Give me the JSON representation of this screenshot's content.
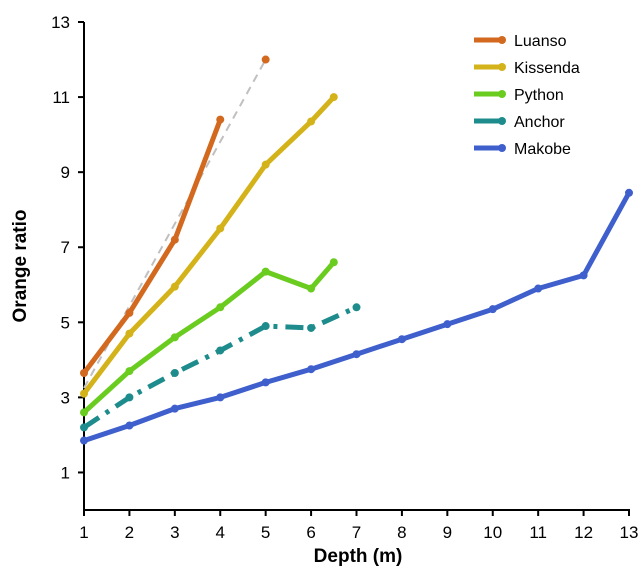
{
  "chart_data": {
    "type": "line",
    "xlabel": "Depth (m)",
    "ylabel": "Orange ratio",
    "xlim": [
      1,
      13
    ],
    "ylim": [
      0,
      13
    ],
    "xticks": [
      "1",
      "2",
      "3",
      "4",
      "5",
      "6",
      "7",
      "8",
      "9",
      "10",
      "11",
      "12",
      "13"
    ],
    "yticks": [
      "1",
      "3",
      "5",
      "7",
      "9",
      "11",
      "13"
    ],
    "legend_position": "top-right",
    "series": [
      {
        "name": "Luanso",
        "color": "#D2691E",
        "style": "solid",
        "x": [
          1,
          2,
          3,
          4
        ],
        "y": [
          3.65,
          5.25,
          7.2,
          10.4
        ]
      },
      {
        "name": "Kissenda",
        "color": "#D4B21A",
        "style": "solid",
        "x": [
          1,
          2,
          3,
          4,
          5,
          6,
          6.5
        ],
        "y": [
          3.1,
          4.7,
          5.95,
          7.5,
          9.2,
          10.35,
          11.0
        ]
      },
      {
        "name": "Python",
        "color": "#6ACC1F",
        "style": "solid",
        "x": [
          1,
          2,
          3,
          4,
          5,
          6,
          6.5
        ],
        "y": [
          2.6,
          3.7,
          4.6,
          5.4,
          6.35,
          5.9,
          6.6
        ]
      },
      {
        "name": "Anchor",
        "color": "#1E8C8C",
        "style": "dashdot",
        "x": [
          1,
          2,
          3,
          4,
          5,
          6,
          7
        ],
        "y": [
          2.2,
          3.0,
          3.65,
          4.25,
          4.9,
          4.85,
          5.4
        ]
      },
      {
        "name": "Makobe",
        "color": "#3E5FCC",
        "style": "solid",
        "x": [
          1,
          2,
          3,
          4,
          5,
          6,
          7,
          8,
          9,
          10,
          11,
          12,
          13
        ],
        "y": [
          1.85,
          2.25,
          2.7,
          3.0,
          3.4,
          3.75,
          4.15,
          4.55,
          4.95,
          5.35,
          5.9,
          6.25,
          8.45
        ]
      }
    ],
    "reference_line": {
      "color": "#C0C0C0",
      "style": "dashed",
      "x": [
        1,
        5
      ],
      "y": [
        3.25,
        12.0
      ]
    },
    "reference_endpoint": {
      "color": "#D2691E",
      "x": 5,
      "y": 12.0
    }
  }
}
